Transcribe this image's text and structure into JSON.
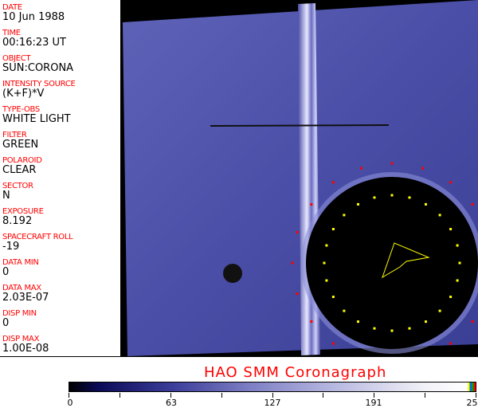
{
  "fields": [
    {
      "label": "DATE",
      "value": "10 Jun 1988"
    },
    {
      "label": "TIME",
      "value": "00:16:23 UT"
    },
    {
      "label": "OBJECT",
      "value": "SUN:CORONA"
    },
    {
      "label": "INTENSITY SOURCE",
      "value": "(K+F)*V"
    },
    {
      "label": "TYPE-OBS",
      "value": "WHITE LIGHT"
    },
    {
      "label": "FILTER",
      "value": "GREEN"
    },
    {
      "label": "POLAROID",
      "value": "CLEAR"
    },
    {
      "label": "SECTOR",
      "value": "N"
    },
    {
      "label": "EXPOSURE",
      "value": "8.192"
    },
    {
      "label": "SPACECRAFT ROLL",
      "value": "-19"
    },
    {
      "label": "DATA MIN",
      "value": "0"
    },
    {
      "label": "DATA MAX",
      "value": "2.03E-07"
    },
    {
      "label": "DISP MIN",
      "value": "0"
    },
    {
      "label": "DISP MAX",
      "value": "1.00E-08"
    }
  ],
  "title": "HAO  SMM Coronagraph",
  "colorbar": {
    "ticks": [
      "0",
      "63",
      "127",
      "191",
      "255"
    ]
  },
  "colors": {
    "label": "#ff0000",
    "image": "#4a4ea6",
    "overlay_red": "#ff0000",
    "overlay_yellow": "#ffff00"
  }
}
